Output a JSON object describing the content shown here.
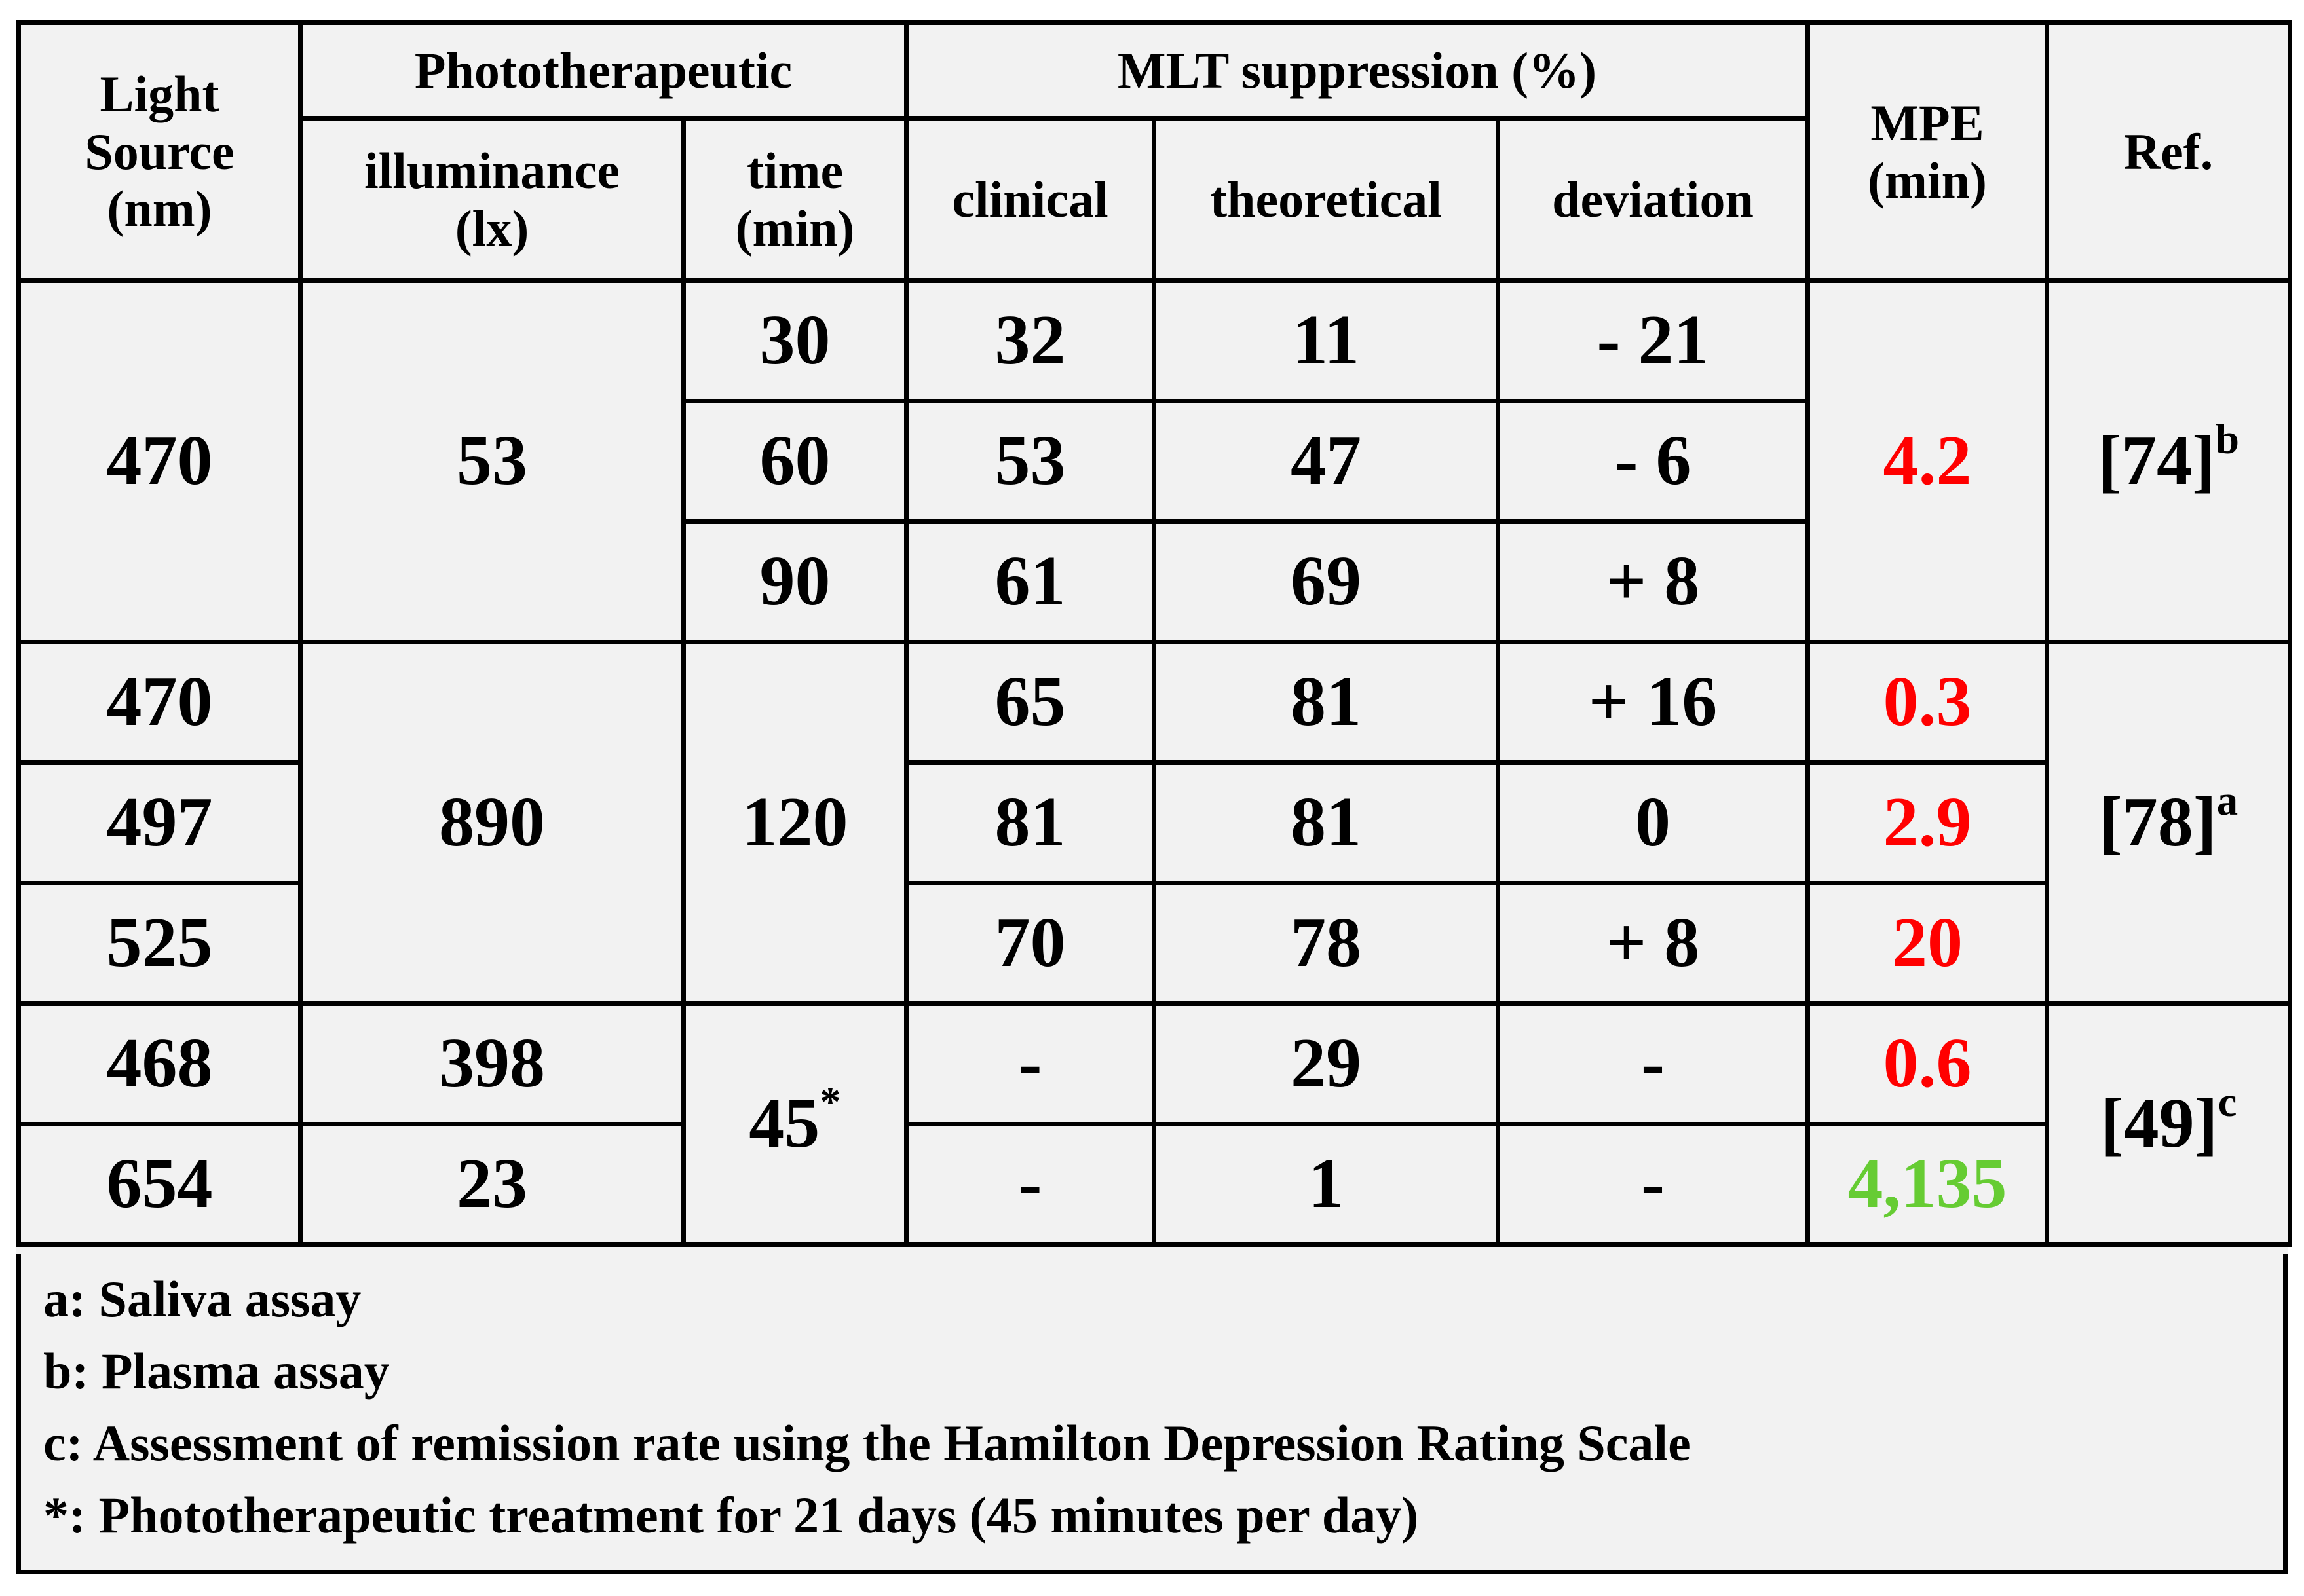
{
  "headers": {
    "light_source": [
      "Light",
      "Source",
      "(nm)"
    ],
    "phototherapeutic": "Phototherapeutic",
    "illuminance": [
      "illuminance",
      "(lx)"
    ],
    "time": [
      "time",
      "(min)"
    ],
    "mlt_suppression": "MLT suppression (%)",
    "clinical": "clinical",
    "theoretical": "theoretical",
    "deviation": "deviation",
    "mpe": [
      "MPE",
      "(min)"
    ],
    "ref": "Ref."
  },
  "group1": {
    "source": "470",
    "illuminance": "53",
    "mpe": "4.2",
    "ref": "[74]",
    "ref_sup": "b",
    "rows": [
      {
        "time": "30",
        "clinical": "32",
        "theoretical": "11",
        "deviation": "- 21"
      },
      {
        "time": "60",
        "clinical": "53",
        "theoretical": "47",
        "deviation": "- 6"
      },
      {
        "time": "90",
        "clinical": "61",
        "theoretical": "69",
        "deviation": "+ 8"
      }
    ]
  },
  "group2": {
    "illuminance": "890",
    "time": "120",
    "ref": "[78]",
    "ref_sup": "a",
    "rows": [
      {
        "source": "470",
        "clinical": "65",
        "theoretical": "81",
        "deviation": "+ 16",
        "mpe": "0.3"
      },
      {
        "source": "497",
        "clinical": "81",
        "theoretical": "81",
        "deviation": "0",
        "mpe": "2.9"
      },
      {
        "source": "525",
        "clinical": "70",
        "theoretical": "78",
        "deviation": "+ 8",
        "mpe": "20"
      }
    ]
  },
  "group3": {
    "time": "45",
    "time_sup": "*",
    "ref": "[49]",
    "ref_sup": "c",
    "rows": [
      {
        "source": "468",
        "illuminance": "398",
        "clinical": "-",
        "theoretical": "29",
        "deviation": "-",
        "mpe": "0.6"
      },
      {
        "source": "654",
        "illuminance": "23",
        "clinical": "-",
        "theoretical": "1",
        "deviation": "-",
        "mpe": "4,135"
      }
    ]
  },
  "colors": {
    "mpe_red": "#ff0000",
    "mpe_green": "#66cc33",
    "background": "#f2f2f2"
  },
  "notes": [
    "a: Saliva assay",
    "b: Plasma assay",
    "c: Assessment of remission rate using the Hamilton Depression Rating Scale",
    "*: Phototherapeutic treatment for 21 days (45 minutes per day)"
  ]
}
